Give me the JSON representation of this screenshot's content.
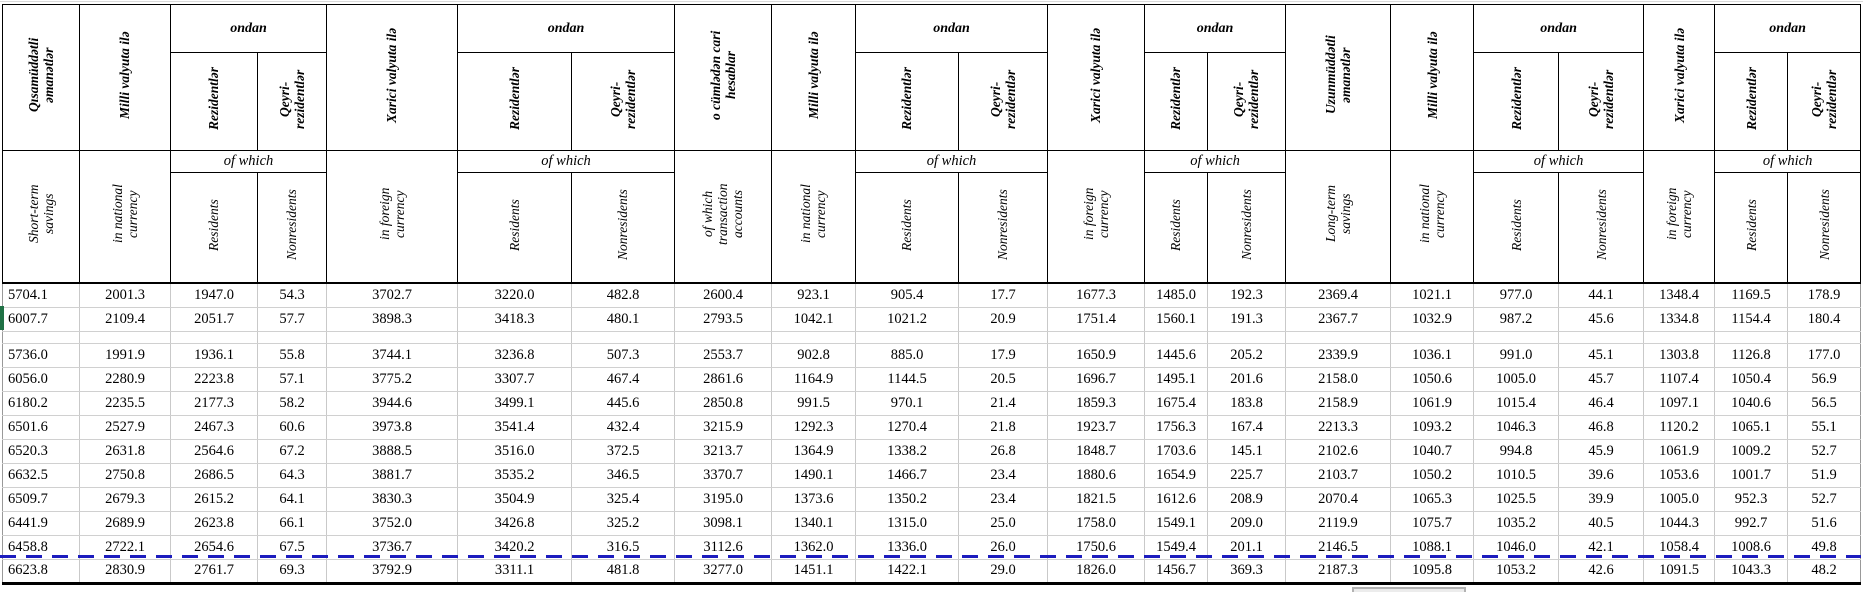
{
  "table": {
    "group_header": {
      "az": "ondan",
      "en": "of which"
    },
    "columns": [
      {
        "az": "Qısamüddətli əmanətlər",
        "en": "Short-term savings",
        "kind": "main"
      },
      {
        "az": "Milli valyuta ilə",
        "en": "in national currency",
        "kind": "main"
      },
      {
        "az": "Rezidentlər",
        "en": "Residents",
        "kind": "res"
      },
      {
        "az": "Qeyri-rezidentlər",
        "en": "Nonresidents",
        "kind": "nonres"
      },
      {
        "az": "Xarici valyuta ilə",
        "en": "in foreign currency",
        "kind": "main"
      },
      {
        "az": "Rezidentlər",
        "en": "Residents",
        "kind": "res"
      },
      {
        "az": "Qeyri-rezidentlər",
        "en": "Nonresidents",
        "kind": "nonres"
      },
      {
        "az": "o cümlədən cari hesablar",
        "en": "of which transaction accounts",
        "kind": "main"
      },
      {
        "az": "Milli valyuta ilə",
        "en": "in national currency",
        "kind": "main"
      },
      {
        "az": "Rezidentlər",
        "en": "Residents",
        "kind": "res"
      },
      {
        "az": "Qeyri-rezidentlər",
        "en": "Nonresidents",
        "kind": "nonres"
      },
      {
        "az": "Xarici valyuta ilə",
        "en": "in foreign currency",
        "kind": "main"
      },
      {
        "az": "Rezidentlər",
        "en": "Residents",
        "kind": "res"
      },
      {
        "az": "Qeyri-rezidentlər",
        "en": "Nonresidents",
        "kind": "nonres"
      },
      {
        "az": "Uzunmüddətli əmanətlər",
        "en": "Long-term savings",
        "kind": "main"
      },
      {
        "az": "Milli valyuta ilə",
        "en": "in national currency",
        "kind": "main"
      },
      {
        "az": "Rezidentlər",
        "en": "Residents",
        "kind": "res"
      },
      {
        "az": "Qeyri-rezidentlər",
        "en": "Nonresidents",
        "kind": "nonres"
      },
      {
        "az": "Xarici valyuta ilə",
        "en": "in foreign currency",
        "kind": "main"
      },
      {
        "az": "Rezidentlər",
        "en": "Residents",
        "kind": "res"
      },
      {
        "az": "Qeyri-rezidentlər",
        "en": "Nonresidents",
        "kind": "nonres"
      }
    ],
    "rows": [
      [
        "5704.1",
        "2001.3",
        "1947.0",
        "54.3",
        "3702.7",
        "3220.0",
        "482.8",
        "2600.4",
        "923.1",
        "905.4",
        "17.7",
        "1677.3",
        "1485.0",
        "192.3",
        "2369.4",
        "1021.1",
        "977.0",
        "44.1",
        "1348.4",
        "1169.5",
        "178.9"
      ],
      [
        "6007.7",
        "2109.4",
        "2051.7",
        "57.7",
        "3898.3",
        "3418.3",
        "480.1",
        "2793.5",
        "1042.1",
        "1021.2",
        "20.9",
        "1751.4",
        "1560.1",
        "191.3",
        "2367.7",
        "1032.9",
        "987.2",
        "45.6",
        "1334.8",
        "1154.4",
        "180.4"
      ],
      [],
      [
        "5736.0",
        "1991.9",
        "1936.1",
        "55.8",
        "3744.1",
        "3236.8",
        "507.3",
        "2553.7",
        "902.8",
        "885.0",
        "17.9",
        "1650.9",
        "1445.6",
        "205.2",
        "2339.9",
        "1036.1",
        "991.0",
        "45.1",
        "1303.8",
        "1126.8",
        "177.0"
      ],
      [
        "6056.0",
        "2280.9",
        "2223.8",
        "57.1",
        "3775.2",
        "3307.7",
        "467.4",
        "2861.6",
        "1164.9",
        "1144.5",
        "20.5",
        "1696.7",
        "1495.1",
        "201.6",
        "2158.0",
        "1050.6",
        "1005.0",
        "45.7",
        "1107.4",
        "1050.4",
        "56.9"
      ],
      [
        "6180.2",
        "2235.5",
        "2177.3",
        "58.2",
        "3944.6",
        "3499.1",
        "445.6",
        "2850.8",
        "991.5",
        "970.1",
        "21.4",
        "1859.3",
        "1675.4",
        "183.8",
        "2158.9",
        "1061.9",
        "1015.4",
        "46.4",
        "1097.1",
        "1040.6",
        "56.5"
      ],
      [
        "6501.6",
        "2527.9",
        "2467.3",
        "60.6",
        "3973.8",
        "3541.4",
        "432.4",
        "3215.9",
        "1292.3",
        "1270.4",
        "21.8",
        "1923.7",
        "1756.3",
        "167.4",
        "2213.3",
        "1093.2",
        "1046.3",
        "46.8",
        "1120.2",
        "1065.1",
        "55.1"
      ],
      [
        "6520.3",
        "2631.8",
        "2564.6",
        "67.2",
        "3888.5",
        "3516.0",
        "372.5",
        "3213.7",
        "1364.9",
        "1338.2",
        "26.8",
        "1848.7",
        "1703.6",
        "145.1",
        "2102.6",
        "1040.7",
        "994.8",
        "45.9",
        "1061.9",
        "1009.2",
        "52.7"
      ],
      [
        "6632.5",
        "2750.8",
        "2686.5",
        "64.3",
        "3881.7",
        "3535.2",
        "346.5",
        "3370.7",
        "1490.1",
        "1466.7",
        "23.4",
        "1880.6",
        "1654.9",
        "225.7",
        "2103.7",
        "1050.2",
        "1010.5",
        "39.6",
        "1053.6",
        "1001.7",
        "51.9"
      ],
      [
        "6509.7",
        "2679.3",
        "2615.2",
        "64.1",
        "3830.3",
        "3504.9",
        "325.4",
        "3195.0",
        "1373.6",
        "1350.2",
        "23.4",
        "1821.5",
        "1612.6",
        "208.9",
        "2070.4",
        "1065.3",
        "1025.5",
        "39.9",
        "1005.0",
        "952.3",
        "52.7"
      ],
      [
        "6441.9",
        "2689.9",
        "2623.8",
        "66.1",
        "3752.0",
        "3426.8",
        "325.2",
        "3098.1",
        "1340.1",
        "1315.0",
        "25.0",
        "1758.0",
        "1549.1",
        "209.0",
        "2119.9",
        "1075.7",
        "1035.2",
        "40.5",
        "1044.3",
        "992.7",
        "51.6"
      ],
      [
        "6458.8",
        "2722.1",
        "2654.6",
        "67.5",
        "3736.7",
        "3420.2",
        "316.5",
        "3112.6",
        "1362.0",
        "1336.0",
        "26.0",
        "1750.6",
        "1549.4",
        "201.1",
        "2146.5",
        "1088.1",
        "1046.0",
        "42.1",
        "1058.4",
        "1008.6",
        "49.8"
      ],
      [
        "6623.8",
        "2830.9",
        "2761.7",
        "69.3",
        "3792.9",
        "3311.1",
        "481.8",
        "3277.0",
        "1451.1",
        "1422.1",
        "29.0",
        "1826.0",
        "1456.7",
        "369.3",
        "2187.3",
        "1095.8",
        "1053.2",
        "42.6",
        "1091.5",
        "1043.3",
        "48.2"
      ]
    ],
    "colors": {
      "page_break_blue": "#1c1cbe",
      "row_marker_green": "#1f7145",
      "scroll_thumb_gray": "#b3b3b3"
    }
  }
}
